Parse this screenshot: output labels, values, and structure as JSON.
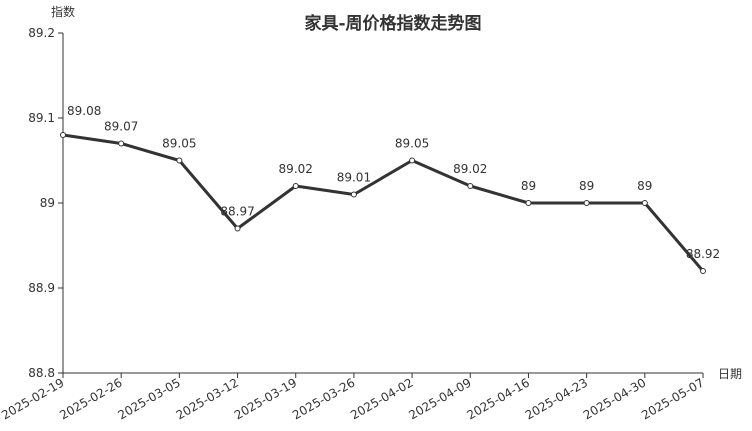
{
  "chart_data": {
    "type": "line",
    "title": "家具-周价格指数走势图",
    "xlabel": "日期",
    "ylabel": "指数",
    "categories": [
      "2025-02-19",
      "2025-02-26",
      "2025-03-05",
      "2025-03-12",
      "2025-03-19",
      "2025-03-26",
      "2025-04-02",
      "2025-04-09",
      "2025-04-16",
      "2025-04-23",
      "2025-04-30",
      "2025-05-07"
    ],
    "values": [
      89.08,
      89.07,
      89.05,
      88.97,
      89.02,
      89.01,
      89.05,
      89.02,
      89,
      89,
      89,
      88.92
    ],
    "ylim": [
      88.8,
      89.2
    ],
    "yticks": [
      88.8,
      88.9,
      89,
      89.1,
      89.2
    ],
    "ytick_labels": [
      "88.8",
      "88.9",
      "89",
      "89.1",
      "89.2"
    ],
    "data_labels": [
      "89.08",
      "89.07",
      "89.05",
      "88.97",
      "89.02",
      "89.01",
      "89.05",
      "89.02",
      "89",
      "89",
      "89",
      "88.92"
    ],
    "grid": false,
    "legend": "none",
    "line_color": "#333333"
  }
}
